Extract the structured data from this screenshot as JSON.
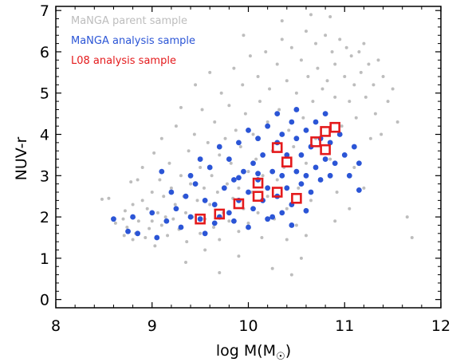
{
  "chart_data": {
    "type": "scatter",
    "xlabel": "log M(M",
    "xlabel_sub": "☉",
    "xlabel_close": ")",
    "ylabel": "NUV-r",
    "xlim": [
      8,
      12
    ],
    "ylim": [
      -0.2,
      7.1
    ],
    "xticks": [
      8,
      9,
      10,
      11,
      12
    ],
    "yticks": [
      0,
      1,
      2,
      3,
      4,
      5,
      6,
      7
    ],
    "legend_position": "top-left",
    "series": [
      {
        "name": "MaNGA parent sample",
        "color": "#bdbdbd",
        "marker": "small-circle",
        "points": [
          [
            8.48,
            2.43
          ],
          [
            8.55,
            2.45
          ],
          [
            8.62,
            1.85
          ],
          [
            8.7,
            1.95
          ],
          [
            8.71,
            1.55
          ],
          [
            8.72,
            2.15
          ],
          [
            8.74,
            1.75
          ],
          [
            8.78,
            2.85
          ],
          [
            8.8,
            2.3
          ],
          [
            8.8,
            1.45
          ],
          [
            8.83,
            1.6
          ],
          [
            8.85,
            2.9
          ],
          [
            8.86,
            1.9
          ],
          [
            8.9,
            3.2
          ],
          [
            8.9,
            2.4
          ],
          [
            8.93,
            1.5
          ],
          [
            8.95,
            2.2
          ],
          [
            8.97,
            1.72
          ],
          [
            9.0,
            2.6
          ],
          [
            9.0,
            1.9
          ],
          [
            9.02,
            3.55
          ],
          [
            9.03,
            1.3
          ],
          [
            9.06,
            2.1
          ],
          [
            9.08,
            2.9
          ],
          [
            9.1,
            1.8
          ],
          [
            9.1,
            3.9
          ],
          [
            9.12,
            2.5
          ],
          [
            9.14,
            2.0
          ],
          [
            9.16,
            1.55
          ],
          [
            9.18,
            3.3
          ],
          [
            9.2,
            2.7
          ],
          [
            9.22,
            1.95
          ],
          [
            9.24,
            2.3
          ],
          [
            9.25,
            4.2
          ],
          [
            9.28,
            1.7
          ],
          [
            9.3,
            3.0
          ],
          [
            9.3,
            4.65
          ],
          [
            9.33,
            2.5
          ],
          [
            9.35,
            2.1
          ],
          [
            9.36,
            1.4
          ],
          [
            9.38,
            3.6
          ],
          [
            9.4,
            2.8
          ],
          [
            9.42,
            2.0
          ],
          [
            9.44,
            4.0
          ],
          [
            9.45,
            5.2
          ],
          [
            9.47,
            2.4
          ],
          [
            9.5,
            3.2
          ],
          [
            9.5,
            1.6
          ],
          [
            9.52,
            4.6
          ],
          [
            9.54,
            2.7
          ],
          [
            9.55,
            1.95
          ],
          [
            9.58,
            3.8
          ],
          [
            9.6,
            2.3
          ],
          [
            9.6,
            5.5
          ],
          [
            9.62,
            3.0
          ],
          [
            9.64,
            1.75
          ],
          [
            9.65,
            4.3
          ],
          [
            9.68,
            2.6
          ],
          [
            9.7,
            3.5
          ],
          [
            9.7,
            1.45
          ],
          [
            9.72,
            5.0
          ],
          [
            9.74,
            2.1
          ],
          [
            9.76,
            3.9
          ],
          [
            9.78,
            2.8
          ],
          [
            9.8,
            4.7
          ],
          [
            9.8,
            1.9
          ],
          [
            9.82,
            3.3
          ],
          [
            9.84,
            2.45
          ],
          [
            9.85,
            5.6
          ],
          [
            9.87,
            4.1
          ],
          [
            9.9,
            2.7
          ],
          [
            9.9,
            1.65
          ],
          [
            9.92,
            3.7
          ],
          [
            9.94,
            5.2
          ],
          [
            9.95,
            2.2
          ],
          [
            9.97,
            4.5
          ],
          [
            10.0,
            3.1
          ],
          [
            10.0,
            1.85
          ],
          [
            10.02,
            5.9
          ],
          [
            10.04,
            2.6
          ],
          [
            10.05,
            4.0
          ],
          [
            10.08,
            3.4
          ],
          [
            10.1,
            5.4
          ],
          [
            10.1,
            2.1
          ],
          [
            10.12,
            4.8
          ],
          [
            10.14,
            1.5
          ],
          [
            10.15,
            3.0
          ],
          [
            10.18,
            6.0
          ],
          [
            10.2,
            2.5
          ],
          [
            10.2,
            4.3
          ],
          [
            10.22,
            5.1
          ],
          [
            10.25,
            3.6
          ],
          [
            10.27,
            1.95
          ],
          [
            10.3,
            5.7
          ],
          [
            10.3,
            2.9
          ],
          [
            10.32,
            4.6
          ],
          [
            10.35,
            6.3
          ],
          [
            10.37,
            3.2
          ],
          [
            10.4,
            5.3
          ],
          [
            10.4,
            2.2
          ],
          [
            10.42,
            4.1
          ],
          [
            10.45,
            6.1
          ],
          [
            10.47,
            3.7
          ],
          [
            10.5,
            5.0
          ],
          [
            10.5,
            1.8
          ],
          [
            10.52,
            2.7
          ],
          [
            10.55,
            5.8
          ],
          [
            10.57,
            4.4
          ],
          [
            10.6,
            6.5
          ],
          [
            10.6,
            3.3
          ],
          [
            10.62,
            5.4
          ],
          [
            10.65,
            2.4
          ],
          [
            10.67,
            4.8
          ],
          [
            10.7,
            6.2
          ],
          [
            10.7,
            3.9
          ],
          [
            10.72,
            5.6
          ],
          [
            10.75,
            2.9
          ],
          [
            10.77,
            5.1
          ],
          [
            10.8,
            6.4
          ],
          [
            10.8,
            4.5
          ],
          [
            10.82,
            5.3
          ],
          [
            10.85,
            3.4
          ],
          [
            10.87,
            6.0
          ],
          [
            10.9,
            4.9
          ],
          [
            10.9,
            5.7
          ],
          [
            10.92,
            2.6
          ],
          [
            10.95,
            6.3
          ],
          [
            10.97,
            4.2
          ],
          [
            11.0,
            5.4
          ],
          [
            11.0,
            3.5
          ],
          [
            11.02,
            6.1
          ],
          [
            11.05,
            4.8
          ],
          [
            11.07,
            5.9
          ],
          [
            11.1,
            3.2
          ],
          [
            11.1,
            5.2
          ],
          [
            11.12,
            4.4
          ],
          [
            11.15,
            6.0
          ],
          [
            11.17,
            5.5
          ],
          [
            11.2,
            2.7
          ],
          [
            11.22,
            4.9
          ],
          [
            11.25,
            5.7
          ],
          [
            11.27,
            3.9
          ],
          [
            11.3,
            5.2
          ],
          [
            11.32,
            4.5
          ],
          [
            11.35,
            5.8
          ],
          [
            11.38,
            4.0
          ],
          [
            11.4,
            5.4
          ],
          [
            11.45,
            4.8
          ],
          [
            11.5,
            5.1
          ],
          [
            11.55,
            4.3
          ],
          [
            11.65,
            2.0
          ],
          [
            11.7,
            1.5
          ],
          [
            10.4,
            1.45
          ],
          [
            10.55,
            1.0
          ],
          [
            10.25,
            0.75
          ],
          [
            9.7,
            0.65
          ],
          [
            9.9,
            1.05
          ],
          [
            10.45,
            0.6
          ],
          [
            9.55,
            1.2
          ],
          [
            9.35,
            0.9
          ],
          [
            10.6,
            1.55
          ],
          [
            10.9,
            1.9
          ],
          [
            11.05,
            2.2
          ],
          [
            10.35,
            6.75
          ],
          [
            10.85,
            6.85
          ],
          [
            11.2,
            6.2
          ],
          [
            9.95,
            6.4
          ],
          [
            10.65,
            6.9
          ]
        ]
      },
      {
        "name": "MaNGA analysis sample",
        "color": "#2b55d6",
        "marker": "circle",
        "points": [
          [
            8.6,
            1.95
          ],
          [
            8.75,
            1.65
          ],
          [
            8.8,
            2.0
          ],
          [
            8.85,
            1.6
          ],
          [
            9.0,
            2.1
          ],
          [
            9.05,
            1.5
          ],
          [
            9.1,
            3.1
          ],
          [
            9.15,
            1.9
          ],
          [
            9.2,
            2.6
          ],
          [
            9.25,
            2.2
          ],
          [
            9.3,
            1.75
          ],
          [
            9.35,
            2.5
          ],
          [
            9.4,
            3.0
          ],
          [
            9.4,
            2.0
          ],
          [
            9.45,
            2.8
          ],
          [
            9.5,
            3.4
          ],
          [
            9.55,
            2.4
          ],
          [
            9.55,
            1.6
          ],
          [
            9.6,
            3.2
          ],
          [
            9.65,
            2.3
          ],
          [
            9.7,
            3.7
          ],
          [
            9.7,
            2.0
          ],
          [
            9.75,
            2.7
          ],
          [
            9.8,
            3.4
          ],
          [
            9.8,
            2.1
          ],
          [
            9.85,
            2.9
          ],
          [
            9.9,
            3.8
          ],
          [
            9.9,
            2.4
          ],
          [
            9.95,
            3.1
          ],
          [
            10.0,
            2.6
          ],
          [
            10.0,
            4.1
          ],
          [
            10.05,
            3.3
          ],
          [
            10.05,
            2.2
          ],
          [
            10.1,
            3.9
          ],
          [
            10.1,
            2.9
          ],
          [
            10.15,
            2.4
          ],
          [
            10.15,
            3.5
          ],
          [
            10.2,
            4.2
          ],
          [
            10.2,
            2.7
          ],
          [
            10.25,
            3.1
          ],
          [
            10.25,
            2.0
          ],
          [
            10.3,
            3.8
          ],
          [
            10.3,
            2.5
          ],
          [
            10.35,
            4.0
          ],
          [
            10.35,
            3.0
          ],
          [
            10.4,
            2.7
          ],
          [
            10.4,
            3.5
          ],
          [
            10.45,
            4.3
          ],
          [
            10.45,
            2.3
          ],
          [
            10.5,
            3.1
          ],
          [
            10.5,
            3.9
          ],
          [
            10.55,
            2.8
          ],
          [
            10.55,
            3.5
          ],
          [
            10.6,
            4.1
          ],
          [
            10.6,
            3.0
          ],
          [
            10.65,
            2.6
          ],
          [
            10.65,
            3.7
          ],
          [
            10.7,
            4.3
          ],
          [
            10.7,
            3.2
          ],
          [
            10.75,
            2.9
          ],
          [
            10.75,
            3.9
          ],
          [
            10.8,
            4.5
          ],
          [
            10.8,
            3.4
          ],
          [
            10.85,
            3.0
          ],
          [
            10.85,
            3.8
          ],
          [
            10.9,
            3.3
          ],
          [
            10.95,
            4.0
          ],
          [
            11.0,
            3.5
          ],
          [
            11.05,
            3.0
          ],
          [
            11.1,
            3.7
          ],
          [
            11.15,
            2.65
          ],
          [
            11.15,
            3.3
          ],
          [
            9.5,
            1.95
          ],
          [
            9.65,
            1.85
          ],
          [
            10.2,
            1.95
          ],
          [
            10.35,
            2.1
          ],
          [
            10.6,
            2.15
          ],
          [
            10.45,
            1.8
          ],
          [
            9.85,
            1.9
          ],
          [
            10.0,
            1.75
          ],
          [
            10.1,
            3.05
          ],
          [
            9.9,
            2.95
          ],
          [
            10.3,
            4.5
          ],
          [
            10.5,
            4.6
          ]
        ]
      },
      {
        "name": "L08 analysis sample",
        "color": "#e41a1c",
        "marker": "open-square",
        "points": [
          [
            9.5,
            1.95
          ],
          [
            9.7,
            2.07
          ],
          [
            9.9,
            2.32
          ],
          [
            10.1,
            2.5
          ],
          [
            10.1,
            2.82
          ],
          [
            10.3,
            2.6
          ],
          [
            10.5,
            2.45
          ],
          [
            10.3,
            3.68
          ],
          [
            10.4,
            3.33
          ],
          [
            10.7,
            3.82
          ],
          [
            10.8,
            4.07
          ],
          [
            10.8,
            3.63
          ],
          [
            10.9,
            4.17
          ]
        ]
      }
    ]
  }
}
